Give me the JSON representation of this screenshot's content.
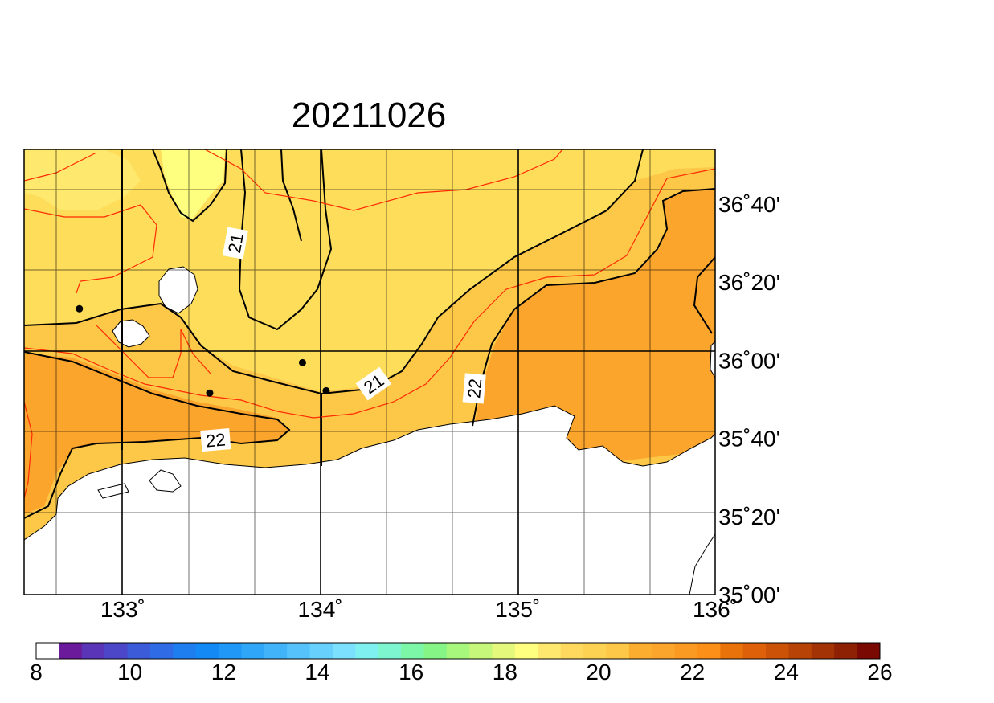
{
  "title": "20211026",
  "map": {
    "lon_range": [
      132.5,
      136.0
    ],
    "lat_range": [
      35.0,
      36.9
    ],
    "lon_ticks": [
      {
        "value": 133,
        "label": "133˚"
      },
      {
        "value": 134,
        "label": "134˚"
      },
      {
        "value": 135,
        "label": "135˚"
      },
      {
        "value": 136,
        "label": "136˚"
      }
    ],
    "lat_ticks": [
      {
        "value": 35.0,
        "label": "35˚00'"
      },
      {
        "value": 35.3333,
        "label": "35˚20'"
      },
      {
        "value": 35.6667,
        "label": "35˚40'"
      },
      {
        "value": 36.0,
        "label": "36˚00'"
      },
      {
        "value": 36.3333,
        "label": "36˚20'"
      },
      {
        "value": 36.6667,
        "label": "36˚40'"
      }
    ],
    "contour_labels": [
      {
        "text": "21",
        "lon": 133.57,
        "lat": 36.5,
        "angle": -80
      },
      {
        "text": "21",
        "lon": 134.27,
        "lat": 35.9,
        "angle": -35
      },
      {
        "text": "22",
        "lon": 134.78,
        "lat": 35.88,
        "angle": -85
      },
      {
        "text": "22",
        "lon": 133.47,
        "lat": 35.66,
        "angle": -5
      }
    ],
    "stations": [
      {
        "lon": 132.78,
        "lat": 36.22
      },
      {
        "lon": 133.44,
        "lat": 35.86
      },
      {
        "lon": 133.91,
        "lat": 35.99
      },
      {
        "lon": 134.03,
        "lat": 35.87
      }
    ],
    "colors": {
      "band_19_20": "#feff7f",
      "band_20_21": "#fedd5b",
      "band_21_22": "#fdc848",
      "band_22_23": "#fba52c",
      "land": "#ffffff",
      "coast": "#000000",
      "contour_major": "#000000",
      "contour_minor": "#ff2a00"
    }
  },
  "colorbar": {
    "min": 8,
    "max": 26,
    "step": 0.5,
    "tick_labels": [
      "8",
      "10",
      "12",
      "14",
      "16",
      "18",
      "20",
      "22",
      "24",
      "26"
    ],
    "colors": [
      "#ffffff",
      "#6a1a9a",
      "#5a35b8",
      "#4c47c8",
      "#3c5bd9",
      "#2e6be4",
      "#1e7ef0",
      "#1389f6",
      "#1f98f8",
      "#30a6f9",
      "#41b3f9",
      "#55c2fb",
      "#68d0fc",
      "#7be0fd",
      "#7ff0f0",
      "#7df6d0",
      "#7cf7a8",
      "#85f585",
      "#a6f77c",
      "#c6f77b",
      "#e4f97c",
      "#ffff7f",
      "#fee86d",
      "#fed95d",
      "#fdd152",
      "#fdc848",
      "#fbad30",
      "#fba52c",
      "#fb9a23",
      "#fb8f18",
      "#e9730a",
      "#de6109",
      "#cc5208",
      "#b84306",
      "#a33205",
      "#8e2104",
      "#7a0903"
    ]
  }
}
